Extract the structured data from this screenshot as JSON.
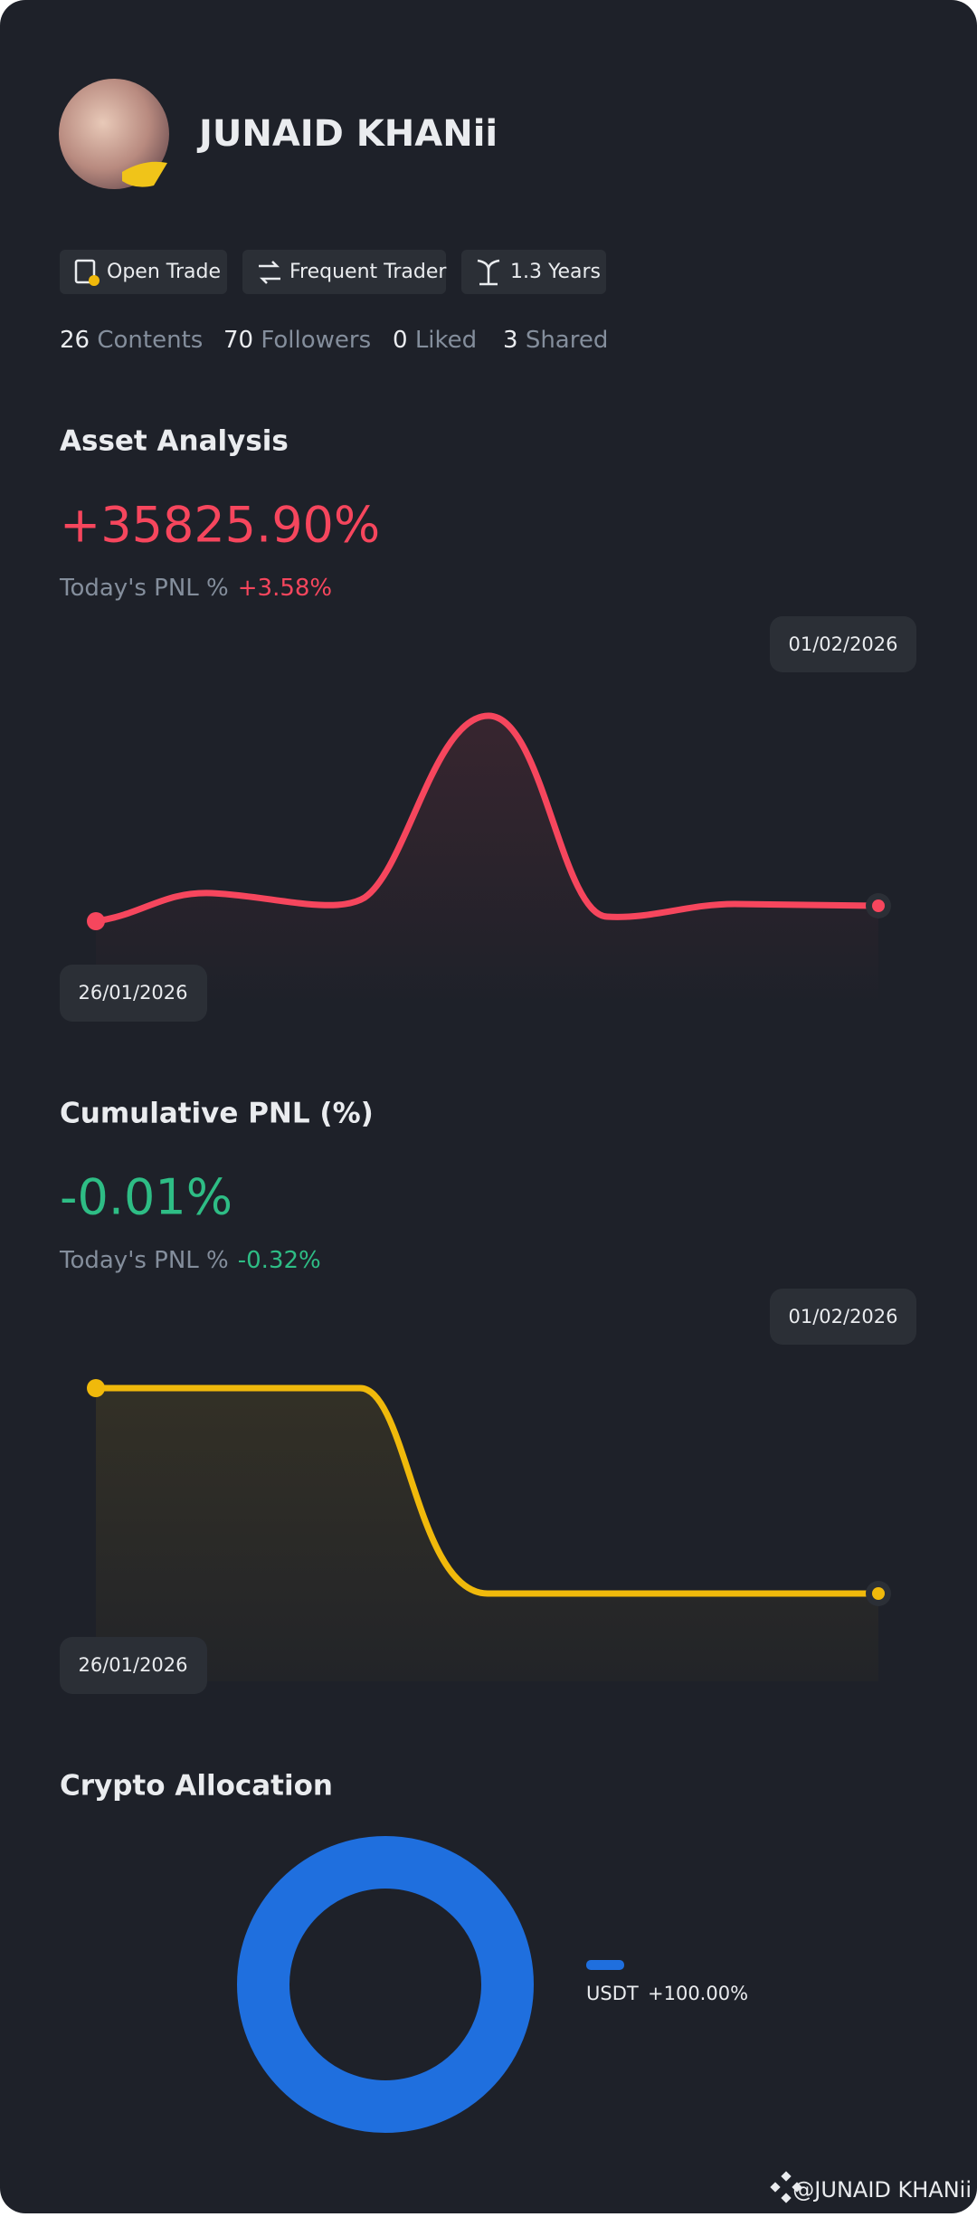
{
  "profile": {
    "name": "JUNAID KHANii",
    "badges": [
      "Open Trade",
      "Frequent Trader",
      "1.3 Years"
    ],
    "stats": [
      {
        "value": 26,
        "label": "Contents"
      },
      {
        "value": 70,
        "label": "Followers"
      },
      {
        "value": 0,
        "label": "Liked"
      },
      {
        "value": 3,
        "label": "Shared"
      }
    ]
  },
  "asset_analysis": {
    "title": "Asset Analysis",
    "total": "+35825.90%",
    "today_label": "Today's PNL %",
    "today_value": "+3.58%",
    "start_date": "26/01/2026",
    "end_date": "01/02/2026"
  },
  "cumulative_pnl": {
    "title": "Cumulative PNL (%)",
    "total": "-0.01%",
    "today_label": "Today's PNL %",
    "today_value": "-0.32%",
    "start_date": "26/01/2026",
    "end_date": "01/02/2026"
  },
  "crypto_allocation": {
    "title": "Crypto Allocation",
    "items": [
      {
        "asset": "USDT",
        "share": "+100.00%"
      }
    ]
  },
  "watermark": "@JUNAID KHANii"
}
